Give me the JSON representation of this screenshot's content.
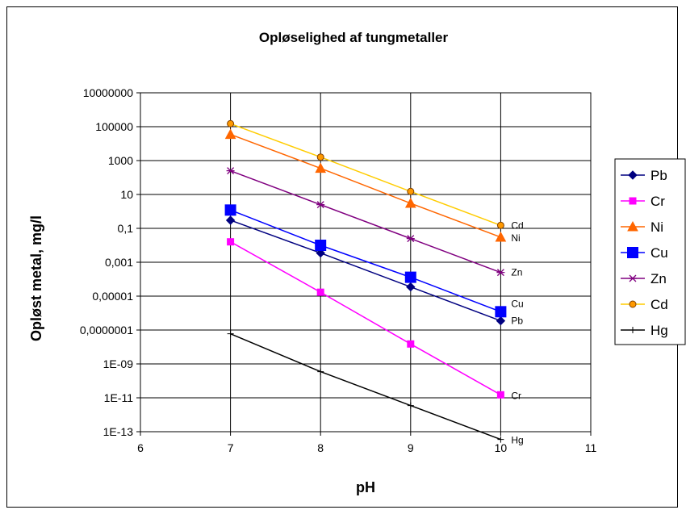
{
  "chart_data": {
    "type": "line",
    "title": "Opløselighed af tungmetaller",
    "xlabel": "pH",
    "ylabel": "Opløst metal, mg/l",
    "xlim": [
      6,
      11
    ],
    "xticks": [
      "6",
      "7",
      "8",
      "9",
      "10",
      "11"
    ],
    "ylim": [
      1e-13,
      10000000.0
    ],
    "yscale": "log",
    "yticks": [
      "1E-13",
      "1E-11",
      "1E-09",
      "0,0000001",
      "0,00001",
      "0,001",
      "0,1",
      "10",
      "1000",
      "100000",
      "10000000"
    ],
    "grid": true,
    "legend_position": "right",
    "x": [
      7,
      8,
      9,
      10
    ],
    "series": [
      {
        "name": "Pb",
        "values": [
          0.3,
          0.0035,
          3.5e-05,
          3.5e-07
        ],
        "color": "#000080",
        "marker": "diamond",
        "end_label": "Pb"
      },
      {
        "name": "Cr",
        "values": [
          0.016,
          1.7e-05,
          1.5e-08,
          1.5e-11
        ],
        "color": "#ff00ff",
        "marker": "square-small",
        "end_label": "Cr"
      },
      {
        "name": "Ni",
        "values": [
          35000,
          350,
          3.0,
          0.03
        ],
        "color": "#ff6600",
        "marker": "triangle",
        "end_label": "Ni"
      },
      {
        "name": "Cu",
        "values": [
          1.2,
          0.01,
          0.00013,
          1.2e-06
        ],
        "color": "#0000ff",
        "marker": "square-large",
        "end_label": "Cu"
      },
      {
        "name": "Zn",
        "values": [
          250,
          2.5,
          0.025,
          0.00025
        ],
        "color": "#800080",
        "marker": "star",
        "end_label": "Zn"
      },
      {
        "name": "Cd",
        "values": [
          150000,
          1600,
          15,
          0.15
        ],
        "color": "#ffcc00",
        "marker": "circle",
        "end_label": "Cd"
      },
      {
        "name": "Hg",
        "values": [
          6e-08,
          3.5e-10,
          3.5e-12,
          3.5e-14
        ],
        "color": "#000000",
        "marker": "plus",
        "end_label": "Hg"
      }
    ]
  }
}
